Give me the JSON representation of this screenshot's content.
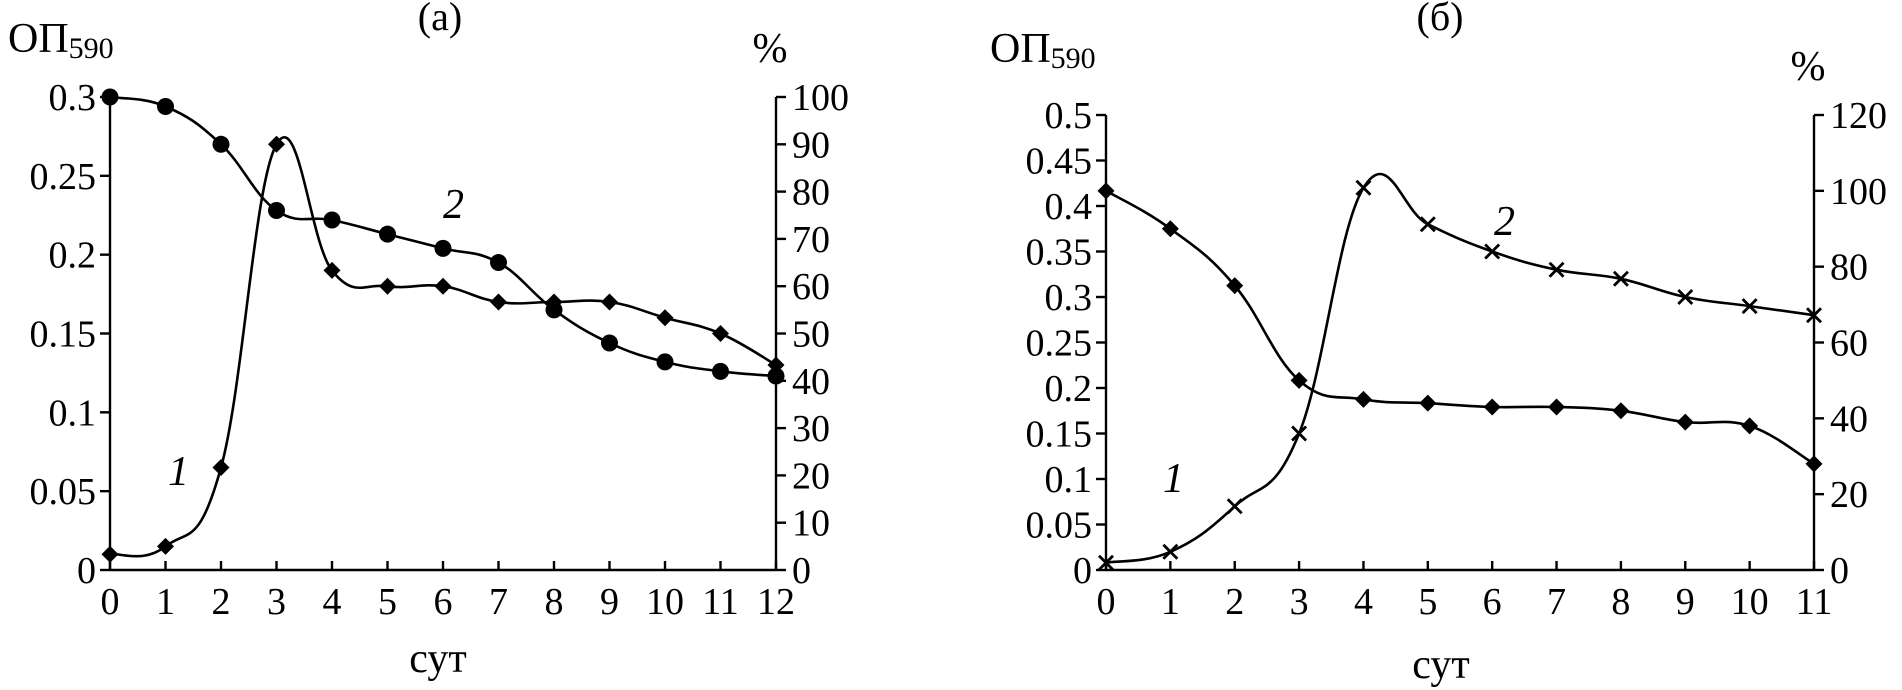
{
  "chart_data": [
    {
      "type": "line",
      "panel_label": "(а)",
      "xlabel": "сут",
      "ylabel_left": "ОП590",
      "ylabel_left_main": "ОП",
      "ylabel_left_sub": "590",
      "ylabel_right": "%",
      "xlim": [
        0,
        12
      ],
      "ylim_left": [
        0,
        0.3
      ],
      "ylim_right": [
        0,
        100
      ],
      "x_ticks": [
        "0",
        "1",
        "2",
        "3",
        "4",
        "5",
        "6",
        "7",
        "8",
        "9",
        "10",
        "11",
        "12"
      ],
      "y_left_ticks": [
        "0",
        "0.05",
        "0.1",
        "0.15",
        "0.2",
        "0.25",
        "0.3"
      ],
      "y_right_ticks": [
        "0",
        "10",
        "20",
        "30",
        "40",
        "50",
        "60",
        "70",
        "80",
        "90",
        "100"
      ],
      "grid": false,
      "series": [
        {
          "name": "1",
          "axis": "left",
          "marker": "diamond",
          "x": [
            0,
            1,
            2,
            3,
            4,
            5,
            6,
            7,
            8,
            9,
            10,
            11,
            12
          ],
          "values": [
            0.01,
            0.015,
            0.065,
            0.27,
            0.19,
            0.18,
            0.18,
            0.17,
            0.17,
            0.17,
            0.16,
            0.15,
            0.13
          ]
        },
        {
          "name": "2",
          "axis": "right",
          "marker": "circle",
          "x": [
            0,
            1,
            2,
            3,
            4,
            5,
            6,
            7,
            8,
            9,
            10,
            11,
            12
          ],
          "values": [
            100,
            98,
            90,
            76,
            74,
            71,
            68,
            65,
            55,
            48,
            44,
            42,
            41
          ]
        }
      ]
    },
    {
      "type": "line",
      "panel_label": "(б)",
      "xlabel": "сут",
      "ylabel_left": "ОП590",
      "ylabel_left_main": "ОП",
      "ylabel_left_sub": "590",
      "ylabel_right": "%",
      "xlim": [
        0,
        11
      ],
      "ylim_left": [
        0,
        0.5
      ],
      "ylim_right": [
        0,
        120
      ],
      "x_ticks": [
        "0",
        "1",
        "2",
        "3",
        "4",
        "5",
        "6",
        "7",
        "8",
        "9",
        "10",
        "11"
      ],
      "y_left_ticks": [
        "0",
        "0.05",
        "0.1",
        "0.15",
        "0.2",
        "0.25",
        "0.3",
        "0.35",
        "0.4",
        "0.45",
        "0.5"
      ],
      "y_right_ticks": [
        "0",
        "20",
        "40",
        "60",
        "80",
        "100",
        "120"
      ],
      "grid": false,
      "series": [
        {
          "name": "1",
          "axis": "left",
          "marker": "x",
          "x": [
            0,
            1,
            2,
            3,
            4,
            5,
            6,
            7,
            8,
            9,
            10,
            11
          ],
          "values": [
            0.008,
            0.02,
            0.07,
            0.15,
            0.42,
            0.38,
            0.35,
            0.33,
            0.32,
            0.3,
            0.29,
            0.28
          ]
        },
        {
          "name": "2",
          "axis": "right",
          "marker": "diamond",
          "x": [
            0,
            1,
            2,
            3,
            4,
            5,
            6,
            7,
            8,
            9,
            10,
            11
          ],
          "values": [
            100,
            90,
            75,
            50,
            45,
            44,
            43,
            43,
            42,
            39,
            38,
            28
          ]
        }
      ]
    }
  ]
}
